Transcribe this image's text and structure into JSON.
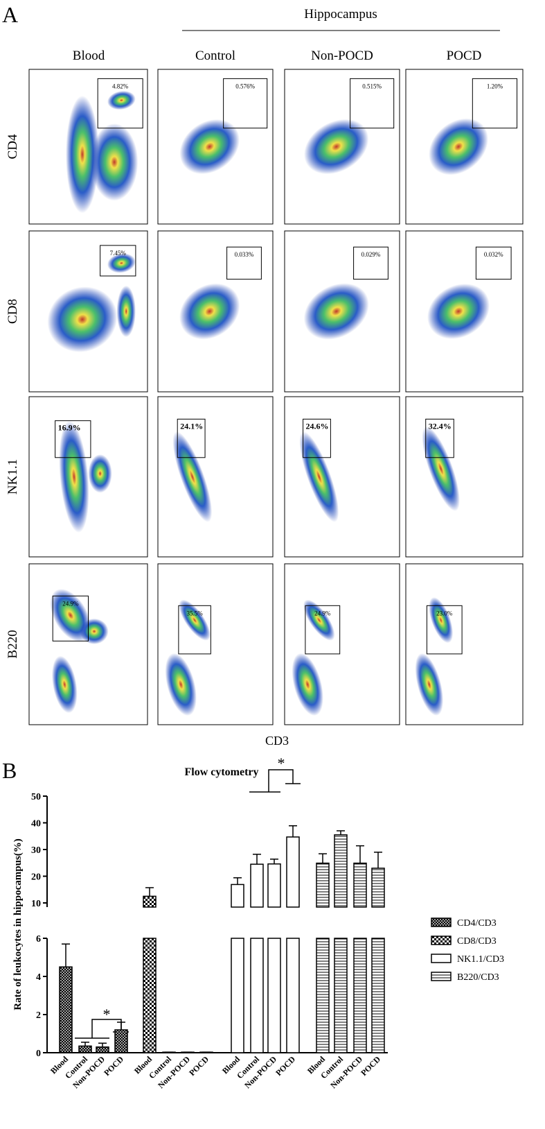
{
  "panel_a": {
    "label": "A",
    "group_label": "Hippocampus",
    "columns": [
      "Blood",
      "Control",
      "Non-POCD",
      "POCD"
    ],
    "rows": [
      {
        "name": "CD4",
        "gates": [
          "4.82%",
          "0.576%",
          "0.515%",
          "1.20%"
        ]
      },
      {
        "name": "CD8",
        "gates": [
          "7.45%",
          "0.033%",
          "0.029%",
          "0.032%"
        ]
      },
      {
        "name": "NK1.1",
        "gates": [
          "16.9%",
          "24.1%",
          "24.6%",
          "32.4%"
        ]
      },
      {
        "name": "B220",
        "gates": [
          "24.9%",
          "35.5%",
          "24.9%",
          "23.0%"
        ]
      }
    ],
    "x_axis_label": "CD3"
  },
  "chart_data": {
    "type": "bar",
    "panel_label": "B",
    "title": "Flow cytometry",
    "y_label": "Rate of leukocytes in hippocampus(%)",
    "categories": [
      "Blood",
      "Control",
      "Non-POCD",
      "POCD"
    ],
    "series": [
      {
        "name": "CD4/CD3",
        "hatch": "crosshatch",
        "color": "#000000",
        "values": [
          4.5,
          0.35,
          0.3,
          1.2
        ],
        "errors": [
          1.2,
          0.2,
          0.2,
          0.4
        ]
      },
      {
        "name": "CD8/CD3",
        "hatch": "checker",
        "color": "#000000",
        "values": [
          12.5,
          0.03,
          0.03,
          0.03
        ],
        "errors": [
          3.2,
          0,
          0,
          0
        ]
      },
      {
        "name": "NK1.1/CD3",
        "hatch": "none",
        "color": "#000000",
        "values": [
          16.9,
          24.5,
          24.6,
          34.7
        ],
        "errors": [
          2.5,
          3.7,
          1.8,
          4.2
        ]
      },
      {
        "name": "B220/CD3",
        "hatch": "horizontal",
        "color": "#000000",
        "values": [
          24.9,
          35.5,
          24.9,
          23.0
        ],
        "errors": [
          3.5,
          1.5,
          6.5,
          6
        ]
      }
    ],
    "ylim": [
      0,
      50
    ],
    "axis_break": [
      6,
      10
    ],
    "yticks": [
      0,
      2,
      4,
      6,
      10,
      20,
      30,
      40,
      50
    ],
    "annotations": [
      "*",
      "*"
    ]
  }
}
